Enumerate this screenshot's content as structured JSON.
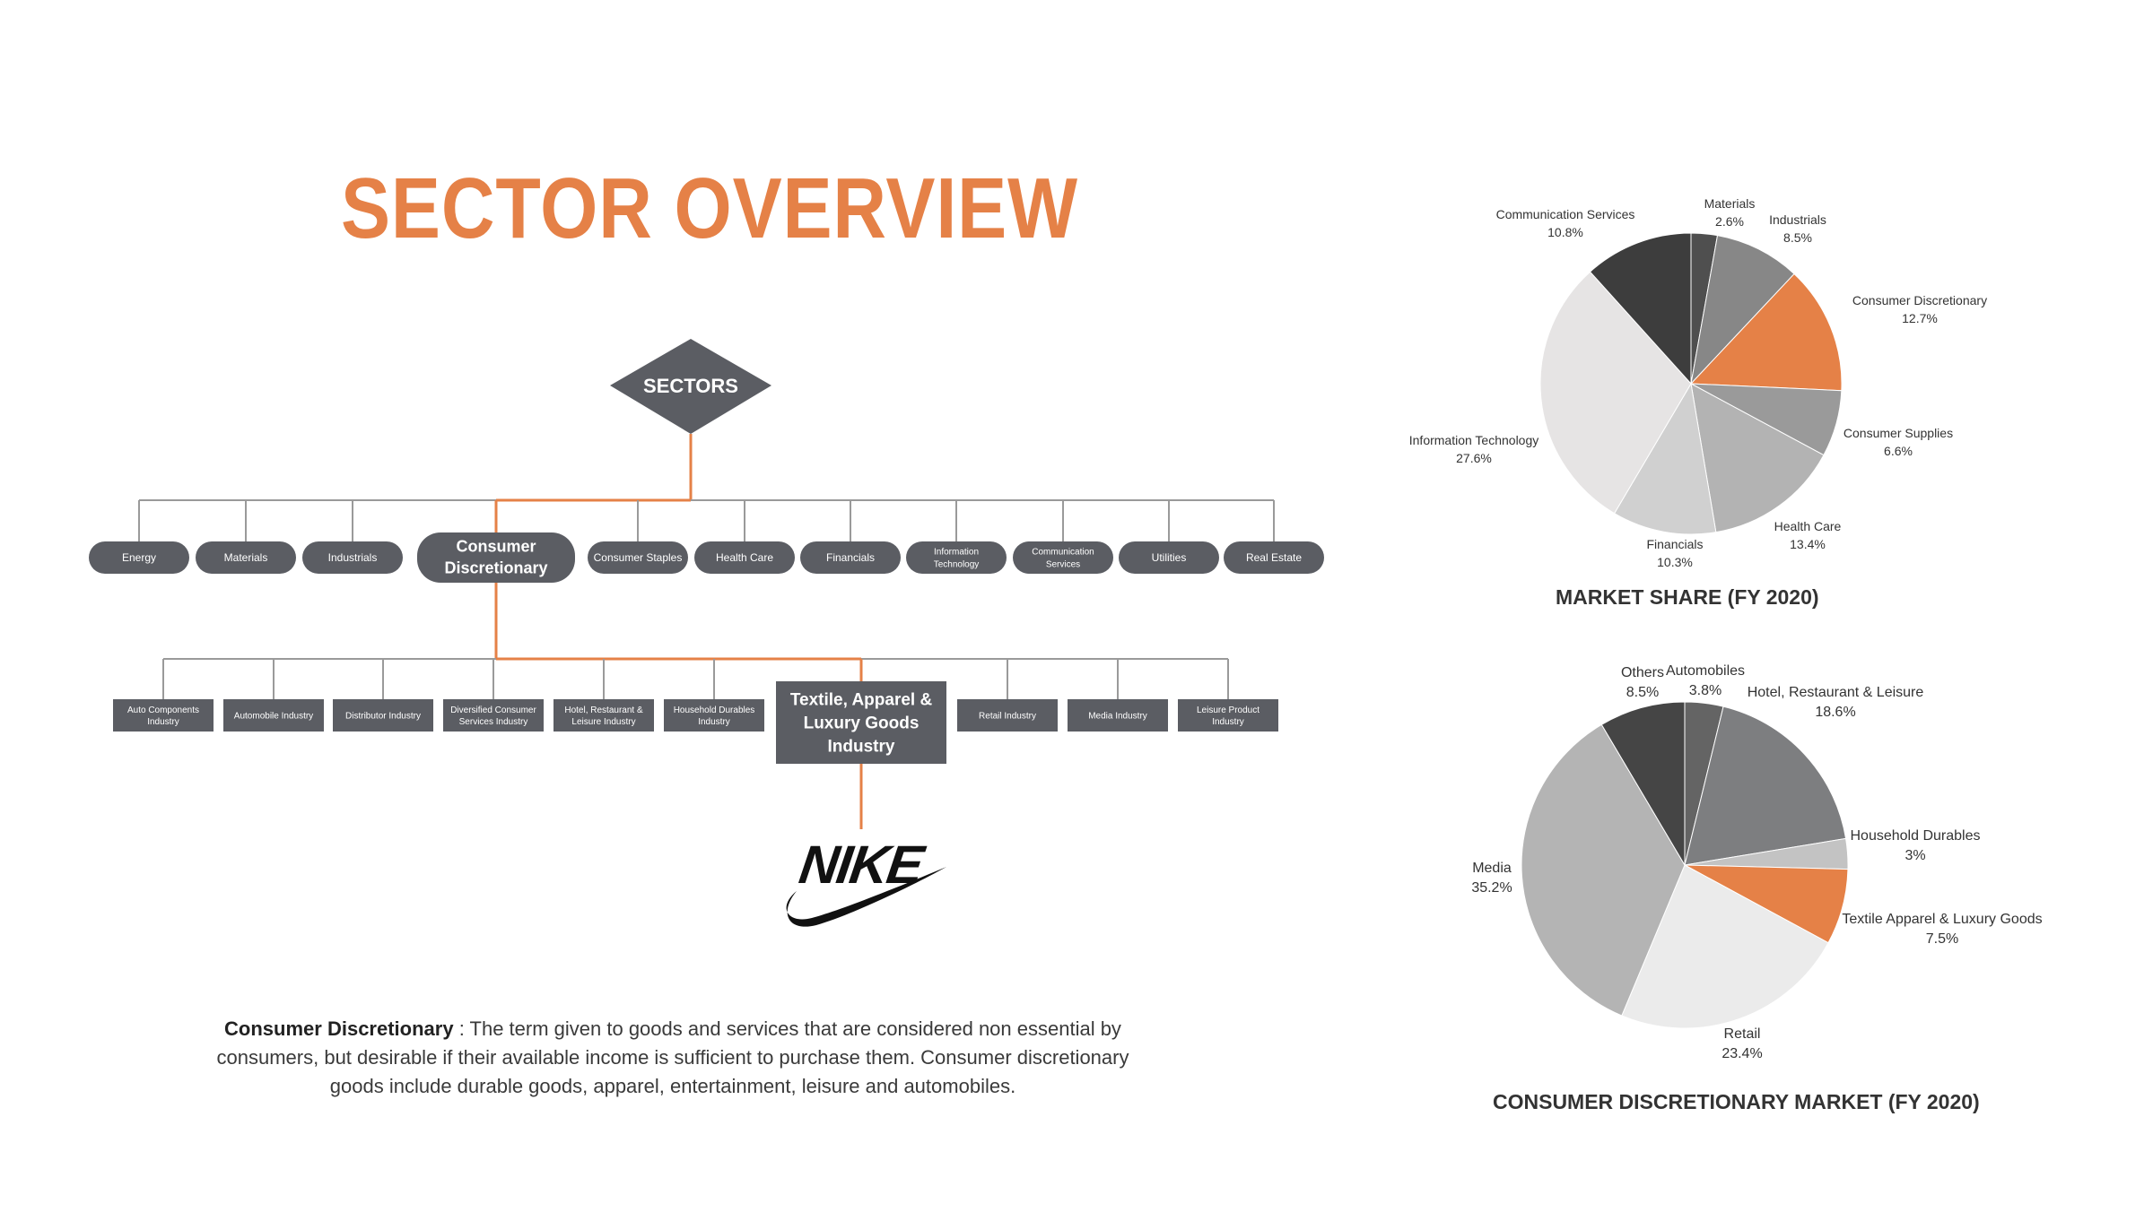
{
  "title": "SECTOR OVERVIEW",
  "root_node": "SECTORS",
  "sectors": [
    "Energy",
    "Materials",
    "Industrials",
    "Consumer Discretionary",
    "Consumer Staples",
    "Health Care",
    "Financials",
    "Information Technology",
    "Communication Services",
    "Utilities",
    "Real Estate"
  ],
  "highlighted_sector": "Consumer Discretionary",
  "industries": [
    "Auto Components Industry",
    "Automobile Industry",
    "Distributor Industry",
    "Diversified Consumer Services Industry",
    "Hotel, Restaurant & Leisure Industry",
    "Household Durables Industry",
    "Textile, Apparel & Luxury Goods Industry",
    "Retail Industry",
    "Media Industry",
    "Leisure Product Industry"
  ],
  "highlighted_industry": "Textile, Apparel & Luxury Goods Industry",
  "company_logo": "NIKE",
  "definition": {
    "term": "Consumer Discretionary",
    "text": " : The term given to goods and services that are considered non essential by consumers, but desirable if their available income is sufficient to purchase them. Consumer discretionary goods include durable goods, apparel, entertainment, leisure and automobiles."
  },
  "colors": {
    "accent": "#e58147",
    "node": "#5b5d63",
    "line": "#9a9a9a"
  },
  "chart_data": [
    {
      "type": "pie",
      "title": "MARKET SHARE (FY 2020)",
      "slices": [
        {
          "label": "Materials",
          "value": 2.6,
          "color": "#4f4f4f"
        },
        {
          "label": "Industrials",
          "value": 8.5,
          "color": "#878787"
        },
        {
          "label": "Consumer Discretionary",
          "value": 12.7,
          "color": "#e58147"
        },
        {
          "label": "Consumer Supplies",
          "value": 6.6,
          "color": "#9a9a9a"
        },
        {
          "label": "Health Care",
          "value": 13.4,
          "color": "#b3b3b3"
        },
        {
          "label": "Financials",
          "value": 10.3,
          "color": "#d0d0d0"
        },
        {
          "label": "Information Technology",
          "value": 27.6,
          "color": "#e6e4e4"
        },
        {
          "label": "Communication Services",
          "value": 10.8,
          "color": "#3d3d3d"
        }
      ],
      "display": [
        "2.6%",
        "8.5%",
        "12.7%",
        "6.6%",
        "13.4%",
        "10.3%",
        "27.6%",
        "10.8%"
      ]
    },
    {
      "type": "pie",
      "title": "CONSUMER DISCRETIONARY MARKET (FY 2020)",
      "slices": [
        {
          "label": "Automobiles",
          "value": 3.8,
          "color": "#646464"
        },
        {
          "label": "Hotel, Restaurant & Leisure",
          "value": 18.6,
          "color": "#7d7e80"
        },
        {
          "label": "Household Durables",
          "value": 3.0,
          "color": "#c3c3c3"
        },
        {
          "label": "Textile Apparel & Luxury Goods",
          "value": 7.5,
          "color": "#e58147"
        },
        {
          "label": "Retail",
          "value": 23.4,
          "color": "#ebebeb"
        },
        {
          "label": "Media",
          "value": 35.2,
          "color": "#b4b4b4"
        },
        {
          "label": "Others",
          "value": 8.5,
          "color": "#454545"
        }
      ],
      "display": [
        "3.8%",
        "18.6%",
        "3%",
        "7.5%",
        "23.4%",
        "35.2%",
        "8.5%"
      ]
    }
  ]
}
